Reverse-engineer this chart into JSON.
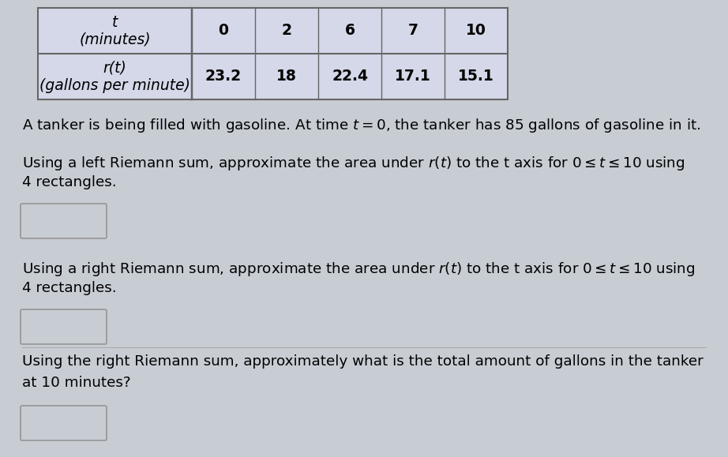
{
  "bg_color": "#c8cdd4",
  "table_cell_bg": "#d4d8e8",
  "table_border_color": "#666666",
  "table": {
    "row1_label": "t\n(minutes)",
    "row2_label": "r(t)\n(gallons per minute)",
    "col_headers": [
      "0",
      "2",
      "6",
      "7",
      "10"
    ],
    "col_values": [
      "23.2",
      "18",
      "22.4",
      "17.1",
      "15.1"
    ]
  },
  "text1": "A tanker is being filled with gasoline. At time $t = 0$, the tanker has 85 gallons of gasoline in it.",
  "text2_line1": "Using a left Riemann sum, approximate the area under $r(t)$ to the t axis for $0 \\leq t \\leq 10$ using",
  "text2_line2": "4 rectangles.",
  "text3_line1": "Using a right Riemann sum, approximate the area under $r(t)$ to the t axis for $0 \\leq t \\leq 10$ using",
  "text3_line2": "4 rectangles.",
  "text4_line1": "Using the right Riemann sum, approximately what is the total amount of gallons in the tanker",
  "text4_line2": "at 10 minutes?",
  "text_fontsize": 13.2,
  "table_fontsize": 13.5,
  "box_color": "#c8cdd4",
  "box_border": "#999999"
}
